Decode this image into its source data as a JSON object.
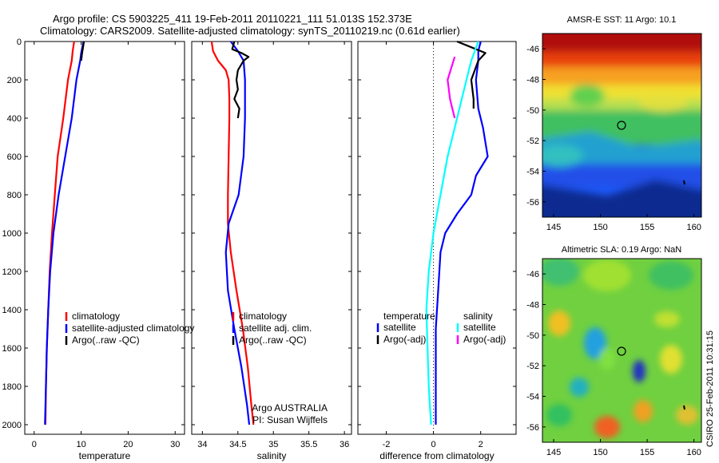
{
  "header": {
    "title_line1": "Argo profile: CS 5903225_411 19-Feb-2011 20110221_111 51.013S 152.373E",
    "title_line2": "Climatology: CARS2009. Satellite-adjusted climatology: synTS_20110219.nc (0.61d earlier)"
  },
  "colors": {
    "climatology": "#ff0000",
    "satellite": "#0000ff",
    "argo": "#000000",
    "cyan": "#00ffff",
    "magenta": "#ff00ff"
  },
  "chart_data": [
    {
      "type": "line",
      "id": "temperature",
      "xlabel": "temperature",
      "ylabel": "",
      "xlim": [
        -2,
        32
      ],
      "ylim": [
        2050,
        0
      ],
      "xticks": [
        0,
        10,
        20,
        30
      ],
      "yticks": [
        0,
        200,
        400,
        600,
        800,
        1000,
        1200,
        1400,
        1600,
        1800,
        2000
      ],
      "legend_placement": "lower-center",
      "series": [
        {
          "name": "climatology",
          "color": "#ff0000",
          "points": [
            [
              8.5,
              0
            ],
            [
              8.2,
              50
            ],
            [
              8,
              100
            ],
            [
              7.2,
              200
            ],
            [
              6.2,
              400
            ],
            [
              5,
              600
            ],
            [
              4.4,
              800
            ],
            [
              3.8,
              1000
            ],
            [
              3.3,
              1200
            ],
            [
              3,
              1400
            ],
            [
              2.7,
              1600
            ],
            [
              2.5,
              1800
            ],
            [
              2.4,
              2000
            ]
          ]
        },
        {
          "name": "satellite-adjusted climatology",
          "color": "#0000ff",
          "points": [
            [
              10.5,
              0
            ],
            [
              10,
              60
            ],
            [
              9.8,
              100
            ],
            [
              9,
              200
            ],
            [
              8,
              400
            ],
            [
              6.6,
              600
            ],
            [
              5.2,
              800
            ],
            [
              4.1,
              1000
            ],
            [
              3.4,
              1200
            ],
            [
              3,
              1400
            ],
            [
              2.7,
              1600
            ],
            [
              2.5,
              1800
            ],
            [
              2.3,
              2000
            ]
          ]
        },
        {
          "name": "Argo(..raw -QC)",
          "color": "#000000",
          "points": [
            [
              10.6,
              0
            ],
            [
              10.2,
              60
            ],
            [
              10,
              100
            ]
          ]
        }
      ]
    },
    {
      "type": "line",
      "id": "salinity",
      "xlabel": "salinity",
      "ylabel": "",
      "xlim": [
        33.85,
        36.1
      ],
      "ylim": [
        2050,
        0
      ],
      "xticks": [
        34,
        34.5,
        35,
        35.5,
        36
      ],
      "yticks": [
        0,
        200,
        400,
        600,
        800,
        1000,
        1200,
        1400,
        1600,
        1800,
        2000
      ],
      "legend_placement": "lower-center",
      "annotation_lines": [
        "Argo AUSTRALIA",
        "PI: Susan Wijffels"
      ],
      "series": [
        {
          "name": "climatology",
          "color": "#ff0000",
          "points": [
            [
              34.13,
              0
            ],
            [
              34.15,
              50
            ],
            [
              34.22,
              100
            ],
            [
              34.33,
              150
            ],
            [
              34.37,
              200
            ],
            [
              34.38,
              300
            ],
            [
              34.38,
              400
            ],
            [
              34.37,
              600
            ],
            [
              34.36,
              800
            ],
            [
              34.36,
              950
            ],
            [
              34.4,
              1100
            ],
            [
              34.48,
              1300
            ],
            [
              34.57,
              1500
            ],
            [
              34.64,
              1700
            ],
            [
              34.69,
              1900
            ],
            [
              34.72,
              2000
            ]
          ]
        },
        {
          "name": "satellite adj. clim.",
          "color": "#0000ff",
          "points": [
            [
              34.4,
              0
            ],
            [
              34.5,
              50
            ],
            [
              34.58,
              100
            ],
            [
              34.6,
              200
            ],
            [
              34.6,
              400
            ],
            [
              34.58,
              600
            ],
            [
              34.51,
              800
            ],
            [
              34.37,
              950
            ],
            [
              34.33,
              1100
            ],
            [
              34.36,
              1300
            ],
            [
              34.45,
              1500
            ],
            [
              34.55,
              1700
            ],
            [
              34.63,
              1900
            ],
            [
              34.66,
              2000
            ]
          ]
        },
        {
          "name": "Argo(..raw -QC)",
          "color": "#000000",
          "points": [
            [
              34.45,
              0
            ],
            [
              34.42,
              40
            ],
            [
              34.55,
              60
            ],
            [
              34.65,
              80
            ],
            [
              34.58,
              100
            ],
            [
              34.5,
              150
            ],
            [
              34.48,
              200
            ],
            [
              34.5,
              250
            ],
            [
              34.45,
              300
            ],
            [
              34.52,
              350
            ],
            [
              34.5,
              400
            ]
          ]
        }
      ]
    },
    {
      "type": "line",
      "id": "difference",
      "xlabel": "difference from climatology",
      "ylabel": "",
      "xlim": [
        -3.2,
        3.5
      ],
      "ylim": [
        2050,
        0
      ],
      "xticks": [
        -2,
        0,
        2
      ],
      "yticks": [
        0,
        200,
        400,
        600,
        800,
        1000,
        1200,
        1400,
        1600,
        1800,
        2000
      ],
      "zero_line": "dotted",
      "legend_titles": [
        "temperature",
        "salinity"
      ],
      "legend_placement": "lower-center",
      "series": [
        {
          "name": "satellite",
          "group": "temperature",
          "color": "#0000ff",
          "points": [
            [
              2.0,
              0
            ],
            [
              1.9,
              50
            ],
            [
              1.9,
              100
            ],
            [
              1.8,
              200
            ],
            [
              1.9,
              350
            ],
            [
              2.1,
              450
            ],
            [
              2.3,
              600
            ],
            [
              1.8,
              700
            ],
            [
              1.6,
              800
            ],
            [
              1.0,
              900
            ],
            [
              0.5,
              1000
            ],
            [
              0.3,
              1100
            ],
            [
              0.2,
              1300
            ],
            [
              0.1,
              1500
            ],
            [
              0.1,
              1700
            ],
            [
              0.1,
              2000
            ]
          ]
        },
        {
          "name": "Argo(-adj)",
          "group": "temperature",
          "color": "#000000",
          "points": [
            [
              1.0,
              0
            ],
            [
              1.6,
              30
            ],
            [
              2.2,
              60
            ],
            [
              1.9,
              100
            ],
            [
              1.6,
              200
            ],
            [
              1.7,
              300
            ],
            [
              1.7,
              350
            ]
          ]
        },
        {
          "name": "satellite",
          "group": "salinity",
          "color": "#00ffff",
          "points": [
            [
              1.9,
              0
            ],
            [
              1.6,
              100
            ],
            [
              1.4,
              200
            ],
            [
              1.2,
              300
            ],
            [
              0.9,
              450
            ],
            [
              0.6,
              600
            ],
            [
              0.3,
              800
            ],
            [
              0.0,
              1000
            ],
            [
              -0.2,
              1200
            ],
            [
              -0.3,
              1400
            ],
            [
              -0.25,
              1600
            ],
            [
              -0.2,
              1800
            ],
            [
              -0.1,
              2000
            ]
          ]
        },
        {
          "name": "Argo(-adj)",
          "group": "salinity",
          "color": "#ff00ff",
          "points": [
            [
              0.9,
              80
            ],
            [
              0.6,
              200
            ],
            [
              0.7,
              300
            ],
            [
              0.8,
              350
            ],
            [
              0.9,
              400
            ]
          ]
        }
      ]
    }
  ],
  "maps": {
    "sst": {
      "title": "AMSR-E SST: 11 Argo: 10.1",
      "xticks": [
        145,
        150,
        155,
        160
      ],
      "yticks": [
        -46,
        -48,
        -50,
        -52,
        -54,
        -56
      ]
    },
    "sla": {
      "title": "Altimetric SLA: 0.19 Argo: NaN",
      "xticks": [
        145,
        150,
        155,
        160
      ],
      "yticks": [
        -46,
        -48,
        -50,
        -52,
        -54,
        -56
      ]
    },
    "side_label": "CSIRO 25-Feb-2011 10:31:15"
  }
}
